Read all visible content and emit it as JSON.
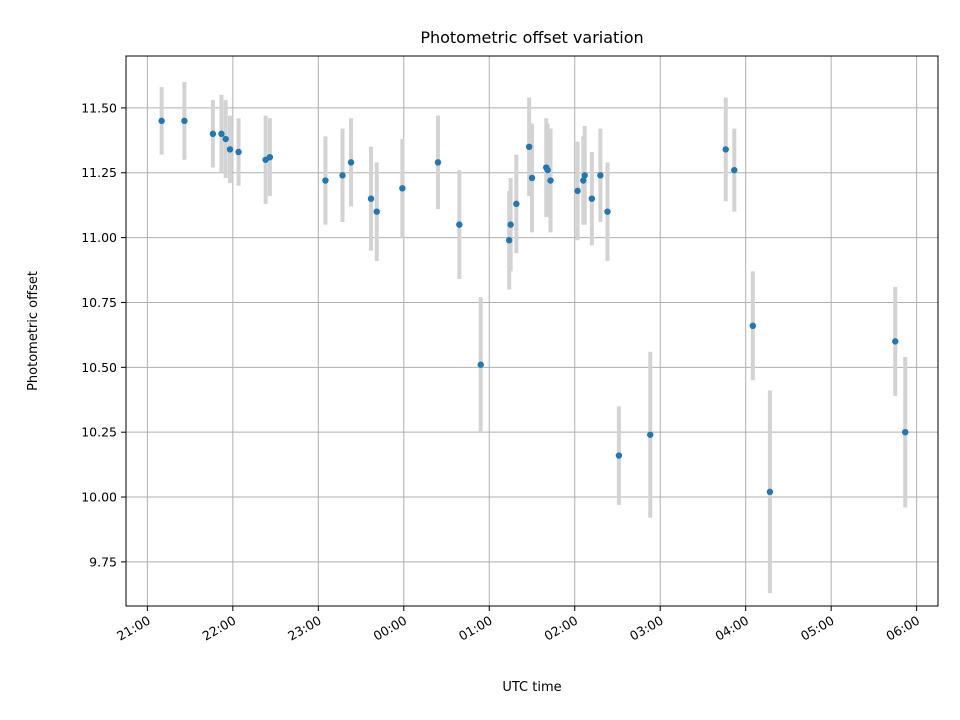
{
  "chart_data": {
    "type": "scatter",
    "title": "Photometric offset variation",
    "xlabel": "UTC time",
    "ylabel": "Photometric offset",
    "x_ticks": [
      "21:00",
      "22:00",
      "23:00",
      "00:00",
      "01:00",
      "02:00",
      "03:00",
      "04:00",
      "05:00",
      "06:00"
    ],
    "y_ticks": [
      "9.75",
      "10.00",
      "10.25",
      "10.50",
      "10.75",
      "11.00",
      "11.25",
      "11.50"
    ],
    "ylim": [
      9.58,
      11.7
    ],
    "xlim": [
      "2023-01-01 20:45",
      "2023-01-02 06:15"
    ],
    "grid": true,
    "x_unit": "UTC time (HH:MM)",
    "colors": {
      "marker": "#1f77b4",
      "errorbar": "#d3d3d3",
      "grid": "#b0b0b0"
    },
    "points": [
      {
        "x": "21:10",
        "y": 11.45,
        "err": 0.13
      },
      {
        "x": "21:26",
        "y": 11.45,
        "err": 0.15
      },
      {
        "x": "21:46",
        "y": 11.4,
        "err": 0.13
      },
      {
        "x": "21:52",
        "y": 11.4,
        "err": 0.15
      },
      {
        "x": "21:55",
        "y": 11.38,
        "err": 0.15
      },
      {
        "x": "21:58",
        "y": 11.34,
        "err": 0.13
      },
      {
        "x": "22:04",
        "y": 11.33,
        "err": 0.13
      },
      {
        "x": "22:23",
        "y": 11.3,
        "err": 0.17
      },
      {
        "x": "22:26",
        "y": 11.31,
        "err": 0.15
      },
      {
        "x": "23:05",
        "y": 11.22,
        "err": 0.17
      },
      {
        "x": "23:17",
        "y": 11.24,
        "err": 0.18
      },
      {
        "x": "23:23",
        "y": 11.29,
        "err": 0.17
      },
      {
        "x": "23:37",
        "y": 11.15,
        "err": 0.2
      },
      {
        "x": "23:41",
        "y": 11.1,
        "err": 0.19
      },
      {
        "x": "23:59",
        "y": 11.19,
        "err": 0.19
      },
      {
        "x": "00:24",
        "y": 11.29,
        "err": 0.18
      },
      {
        "x": "00:39",
        "y": 11.05,
        "err": 0.21
      },
      {
        "x": "00:54",
        "y": 10.51,
        "err": 0.26
      },
      {
        "x": "01:14",
        "y": 10.99,
        "err": 0.19
      },
      {
        "x": "01:15",
        "y": 11.05,
        "err": 0.18
      },
      {
        "x": "01:19",
        "y": 11.13,
        "err": 0.19
      },
      {
        "x": "01:28",
        "y": 11.35,
        "err": 0.19
      },
      {
        "x": "01:30",
        "y": 11.23,
        "err": 0.21
      },
      {
        "x": "01:40",
        "y": 11.27,
        "err": 0.19
      },
      {
        "x": "01:41",
        "y": 11.26,
        "err": 0.18
      },
      {
        "x": "01:43",
        "y": 11.22,
        "err": 0.2
      },
      {
        "x": "02:02",
        "y": 11.18,
        "err": 0.19
      },
      {
        "x": "02:06",
        "y": 11.22,
        "err": 0.17
      },
      {
        "x": "02:07",
        "y": 11.24,
        "err": 0.19
      },
      {
        "x": "02:12",
        "y": 11.15,
        "err": 0.18
      },
      {
        "x": "02:18",
        "y": 11.24,
        "err": 0.18
      },
      {
        "x": "02:23",
        "y": 11.1,
        "err": 0.19
      },
      {
        "x": "02:31",
        "y": 10.16,
        "err": 0.19
      },
      {
        "x": "02:53",
        "y": 10.24,
        "err": 0.32
      },
      {
        "x": "03:46",
        "y": 11.34,
        "err": 0.2
      },
      {
        "x": "03:52",
        "y": 11.26,
        "err": 0.16
      },
      {
        "x": "04:05",
        "y": 10.66,
        "err": 0.21
      },
      {
        "x": "04:17",
        "y": 10.02,
        "err": 0.39
      },
      {
        "x": "05:45",
        "y": 10.6,
        "err": 0.21
      },
      {
        "x": "05:52",
        "y": 10.25,
        "err": 0.29
      }
    ]
  }
}
